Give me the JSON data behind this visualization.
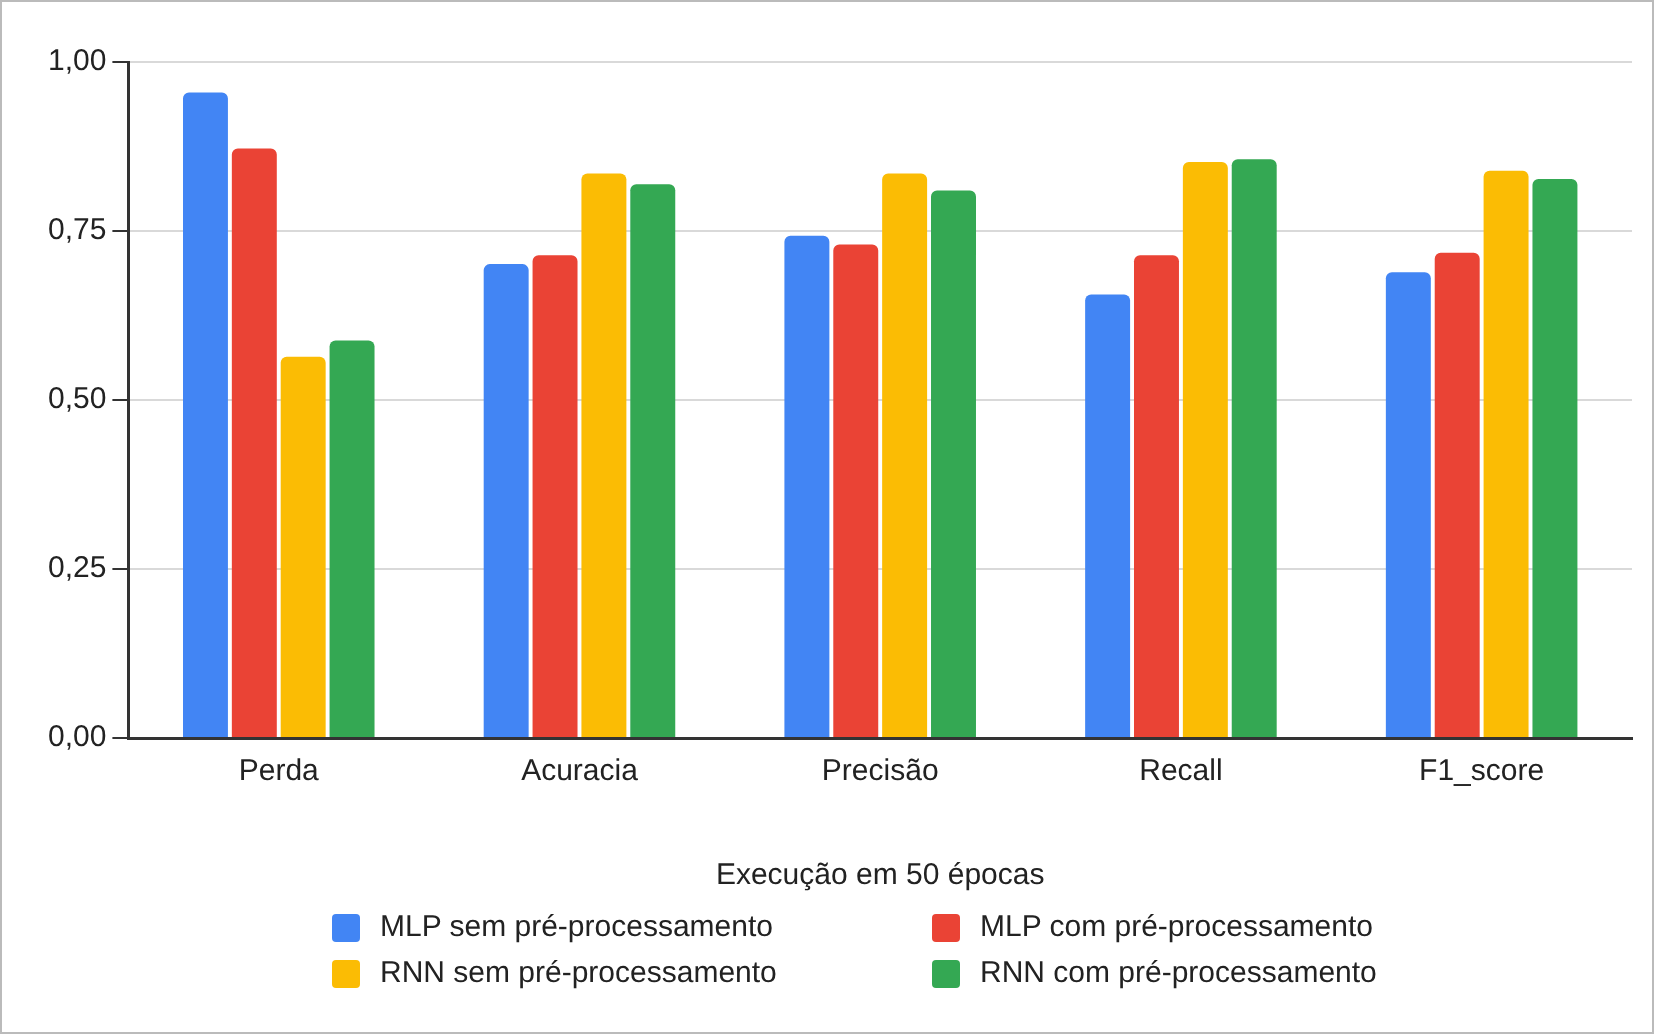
{
  "chart_data": {
    "type": "bar",
    "xlabel": "Execução em 50 épocas",
    "categories": [
      "Perda",
      "Acuracia",
      "Precisão",
      "Recall",
      "F1_score"
    ],
    "series": [
      {
        "name": "MLP sem pré-processamento",
        "color": "#4285f4",
        "values": [
          0.955,
          0.701,
          0.743,
          0.656,
          0.689
        ]
      },
      {
        "name": "MLP com pré-processamento",
        "color": "#ea4335",
        "values": [
          0.872,
          0.714,
          0.73,
          0.714,
          0.718
        ]
      },
      {
        "name": "RNN sem pré-processamento",
        "color": "#fbbc04",
        "values": [
          0.564,
          0.835,
          0.835,
          0.852,
          0.839
        ]
      },
      {
        "name": "RNN com pré-processamento",
        "color": "#34a853",
        "values": [
          0.588,
          0.819,
          0.81,
          0.856,
          0.827
        ]
      }
    ],
    "ylim": [
      0,
      1
    ],
    "yticks": [
      {
        "value": 0,
        "label": "0,00"
      },
      {
        "value": 0.25,
        "label": "0,25"
      },
      {
        "value": 0.5,
        "label": "0,50"
      },
      {
        "value": 0.75,
        "label": "0,75"
      },
      {
        "value": 1,
        "label": "1,00"
      }
    ],
    "grid": "y",
    "legend": "bottom"
  }
}
